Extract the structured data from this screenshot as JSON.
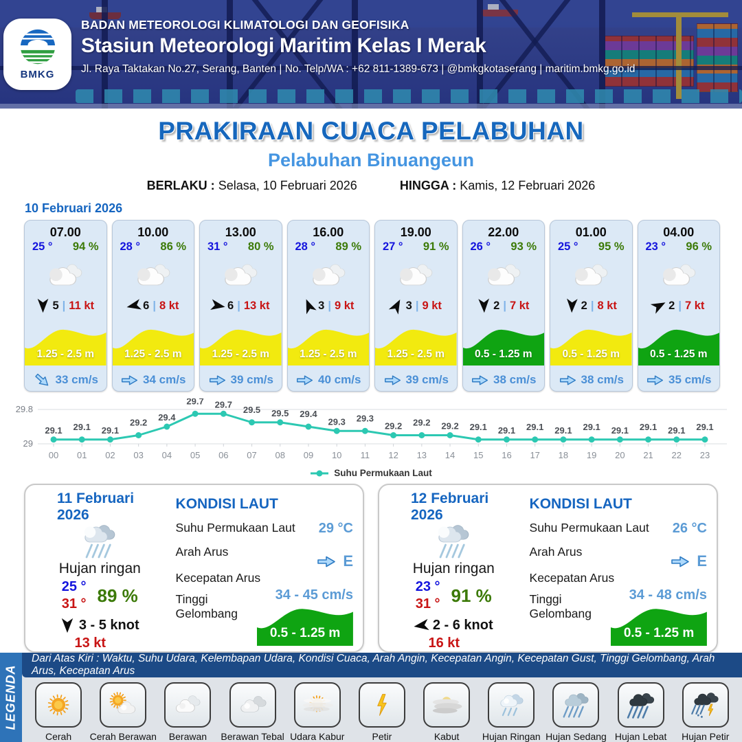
{
  "header": {
    "logo_label": "BMKG",
    "agency": "BADAN METEOROLOGI KLIMATOLOGI DAN GEOFISIKA",
    "station": "Stasiun Meteorologi Maritim Kelas I Merak",
    "address": "Jl. Raya Taktakan No.27, Serang, Banten | No. Telp/WA : +62 811-1389-673 | @bmkgkotaserang | maritim.bmkg.go.id"
  },
  "title": {
    "main": "PRAKIRAAN CUACA PELABUHAN",
    "subtitle": "Pelabuhan Binuangeun",
    "valid_from_label": "BERLAKU :",
    "valid_from": "Selasa, 10 Februari 2026",
    "valid_to_label": "HINGGA :",
    "valid_to": "Kamis, 12 Februari 2026"
  },
  "forecast_date": "10 Februari 2026",
  "hourly": [
    {
      "time": "07.00",
      "temp": "25 °",
      "humidity": "94 %",
      "icon": "berawan",
      "wind_speed": "5",
      "gust": "11 kt",
      "wind_dir_deg": 180,
      "wave": "1.25 - 2.5 m",
      "wave_color": "#F2EA0F",
      "current": "33 cm/s",
      "current_dir_deg": 42
    },
    {
      "time": "10.00",
      "temp": "28 °",
      "humidity": "86 %",
      "icon": "berawan",
      "wind_speed": "6",
      "gust": "8 kt",
      "wind_dir_deg": 258,
      "wave": "1.25 - 2.5 m",
      "wave_color": "#F2EA0F",
      "current": "34 cm/s",
      "current_dir_deg": 0
    },
    {
      "time": "13.00",
      "temp": "31 °",
      "humidity": "80 %",
      "icon": "berawan",
      "wind_speed": "6",
      "gust": "13 kt",
      "wind_dir_deg": 100,
      "wave": "1.25 - 2.5 m",
      "wave_color": "#F2EA0F",
      "current": "39 cm/s",
      "current_dir_deg": 0
    },
    {
      "time": "16.00",
      "temp": "28 °",
      "humidity": "89 %",
      "icon": "berawan",
      "wind_speed": "3",
      "gust": "9 kt",
      "wind_dir_deg": 338,
      "wave": "1.25 - 2.5 m",
      "wave_color": "#F2EA0F",
      "current": "40 cm/s",
      "current_dir_deg": 0
    },
    {
      "time": "19.00",
      "temp": "27 °",
      "humidity": "91 %",
      "icon": "berawan",
      "wind_speed": "3",
      "gust": "9 kt",
      "wind_dir_deg": 28,
      "wave": "1.25 - 2.5 m",
      "wave_color": "#F2EA0F",
      "current": "39 cm/s",
      "current_dir_deg": 0
    },
    {
      "time": "22.00",
      "temp": "26 °",
      "humidity": "93 %",
      "icon": "berawan",
      "wind_speed": "2",
      "gust": "7 kt",
      "wind_dir_deg": 178,
      "wave": "0.5 - 1.25 m",
      "wave_color": "#0FA412",
      "current": "38 cm/s",
      "current_dir_deg": 0
    },
    {
      "time": "01.00",
      "temp": "25 °",
      "humidity": "95 %",
      "icon": "berawan",
      "wind_speed": "2",
      "gust": "8 kt",
      "wind_dir_deg": 182,
      "wave": "0.5 - 1.25 m",
      "wave_color": "#F2EA0F",
      "current": "38 cm/s",
      "current_dir_deg": 0
    },
    {
      "time": "04.00",
      "temp": "23 °",
      "humidity": "96 %",
      "icon": "berawan",
      "wind_speed": "2",
      "gust": "7 kt",
      "wind_dir_deg": 62,
      "wave": "0.5 - 1.25 m",
      "wave_color": "#0FA412",
      "current": "35 cm/s",
      "current_dir_deg": 0
    }
  ],
  "chart_data": {
    "type": "line",
    "x": [
      "00",
      "01",
      "02",
      "03",
      "04",
      "05",
      "06",
      "07",
      "08",
      "09",
      "10",
      "11",
      "12",
      "13",
      "14",
      "15",
      "16",
      "17",
      "18",
      "19",
      "20",
      "21",
      "22",
      "23"
    ],
    "series": [
      {
        "name": "Suhu Permukaan Laut",
        "values": [
          29.1,
          29.1,
          29.1,
          29.2,
          29.4,
          29.7,
          29.7,
          29.5,
          29.5,
          29.4,
          29.3,
          29.3,
          29.2,
          29.2,
          29.2,
          29.1,
          29.1,
          29.1,
          29.1,
          29.1,
          29.1,
          29.1,
          29.1,
          29.1
        ]
      }
    ],
    "ylim": [
      29,
      29.8
    ],
    "yticks": [
      {
        "value": 29.8,
        "label": "29.8"
      },
      {
        "value": 29,
        "label": "29"
      }
    ],
    "line_color": "#2CC8B2",
    "grid": true,
    "legend_position": "bottom"
  },
  "sea_labels": {
    "title": "KONDISI LAUT",
    "sst": "Suhu Permukaan Laut",
    "direction": "Arah Arus",
    "speed": "Kecepatan Arus",
    "wave": "Tinggi Gelombang"
  },
  "daily": [
    {
      "date": "11 Februari 2026",
      "icon": "hujan-ringan-daily",
      "condition": "Hujan ringan",
      "temp_min": "25 °",
      "temp_max": "31 °",
      "humidity": "89 %",
      "wind": "3  - 5 knot",
      "wind_dir_deg": 180,
      "gust": "13 kt",
      "sea_temp": "29 °C",
      "current_dir": "E",
      "current_speed": "34  - 45 cm/s",
      "wave": "0.5 - 1.25 m",
      "wave_color": "#0FA412"
    },
    {
      "date": "12 Februari 2026",
      "icon": "hujan-ringan-daily",
      "condition": "Hujan ringan",
      "temp_min": "23 °",
      "temp_max": "31 °",
      "humidity": "91 %",
      "wind": "2  - 6 knot",
      "wind_dir_deg": 262,
      "gust": "16 kt",
      "sea_temp": "26 °C",
      "current_dir": "E",
      "current_speed": "34  - 48 cm/s",
      "wave": "0.5 - 1.25 m",
      "wave_color": "#0FA412"
    }
  ],
  "legend": {
    "title": "LEGENDA",
    "note": "Dari Atas Kiri : Waktu, Suhu Udara, Kelembapan Udara, Kondisi Cuaca, Arah Angin, Kecepatan Angin, Kecepatan Gust, Tinggi Gelombang, Arah Arus, Kecepatan Arus",
    "items": [
      {
        "label": "Cerah",
        "icon": "cerah"
      },
      {
        "label": "Cerah Berawan",
        "icon": "cerah-berawan"
      },
      {
        "label": "Berawan",
        "icon": "berawan-leg"
      },
      {
        "label": "Berawan Tebal",
        "icon": "berawan-tebal"
      },
      {
        "label": "Udara Kabur",
        "icon": "udara-kabur"
      },
      {
        "label": "Petir",
        "icon": "petir"
      },
      {
        "label": "Kabut",
        "icon": "kabut"
      },
      {
        "label": "Hujan Ringan",
        "icon": "hujan-ringan"
      },
      {
        "label": "Hujan Sedang",
        "icon": "hujan-sedang"
      },
      {
        "label": "Hujan Lebat",
        "icon": "hujan-lebat"
      },
      {
        "label": "Hujan Petir",
        "icon": "hujan-petir"
      }
    ]
  },
  "colors": {
    "accent_blue": "#1565C0",
    "title_blue": "#1667BD",
    "subtitle_blue": "#4595E1",
    "temp_blue": "#1414DD",
    "humidity_green": "#3C7A08",
    "gust_red": "#C81414",
    "current_blue": "#4A8FD6",
    "sea_value_blue": "#5B9BD5",
    "wave_yellow": "#F2EA0F",
    "wave_green": "#0FA412",
    "chart_line": "#2CC8B2"
  }
}
